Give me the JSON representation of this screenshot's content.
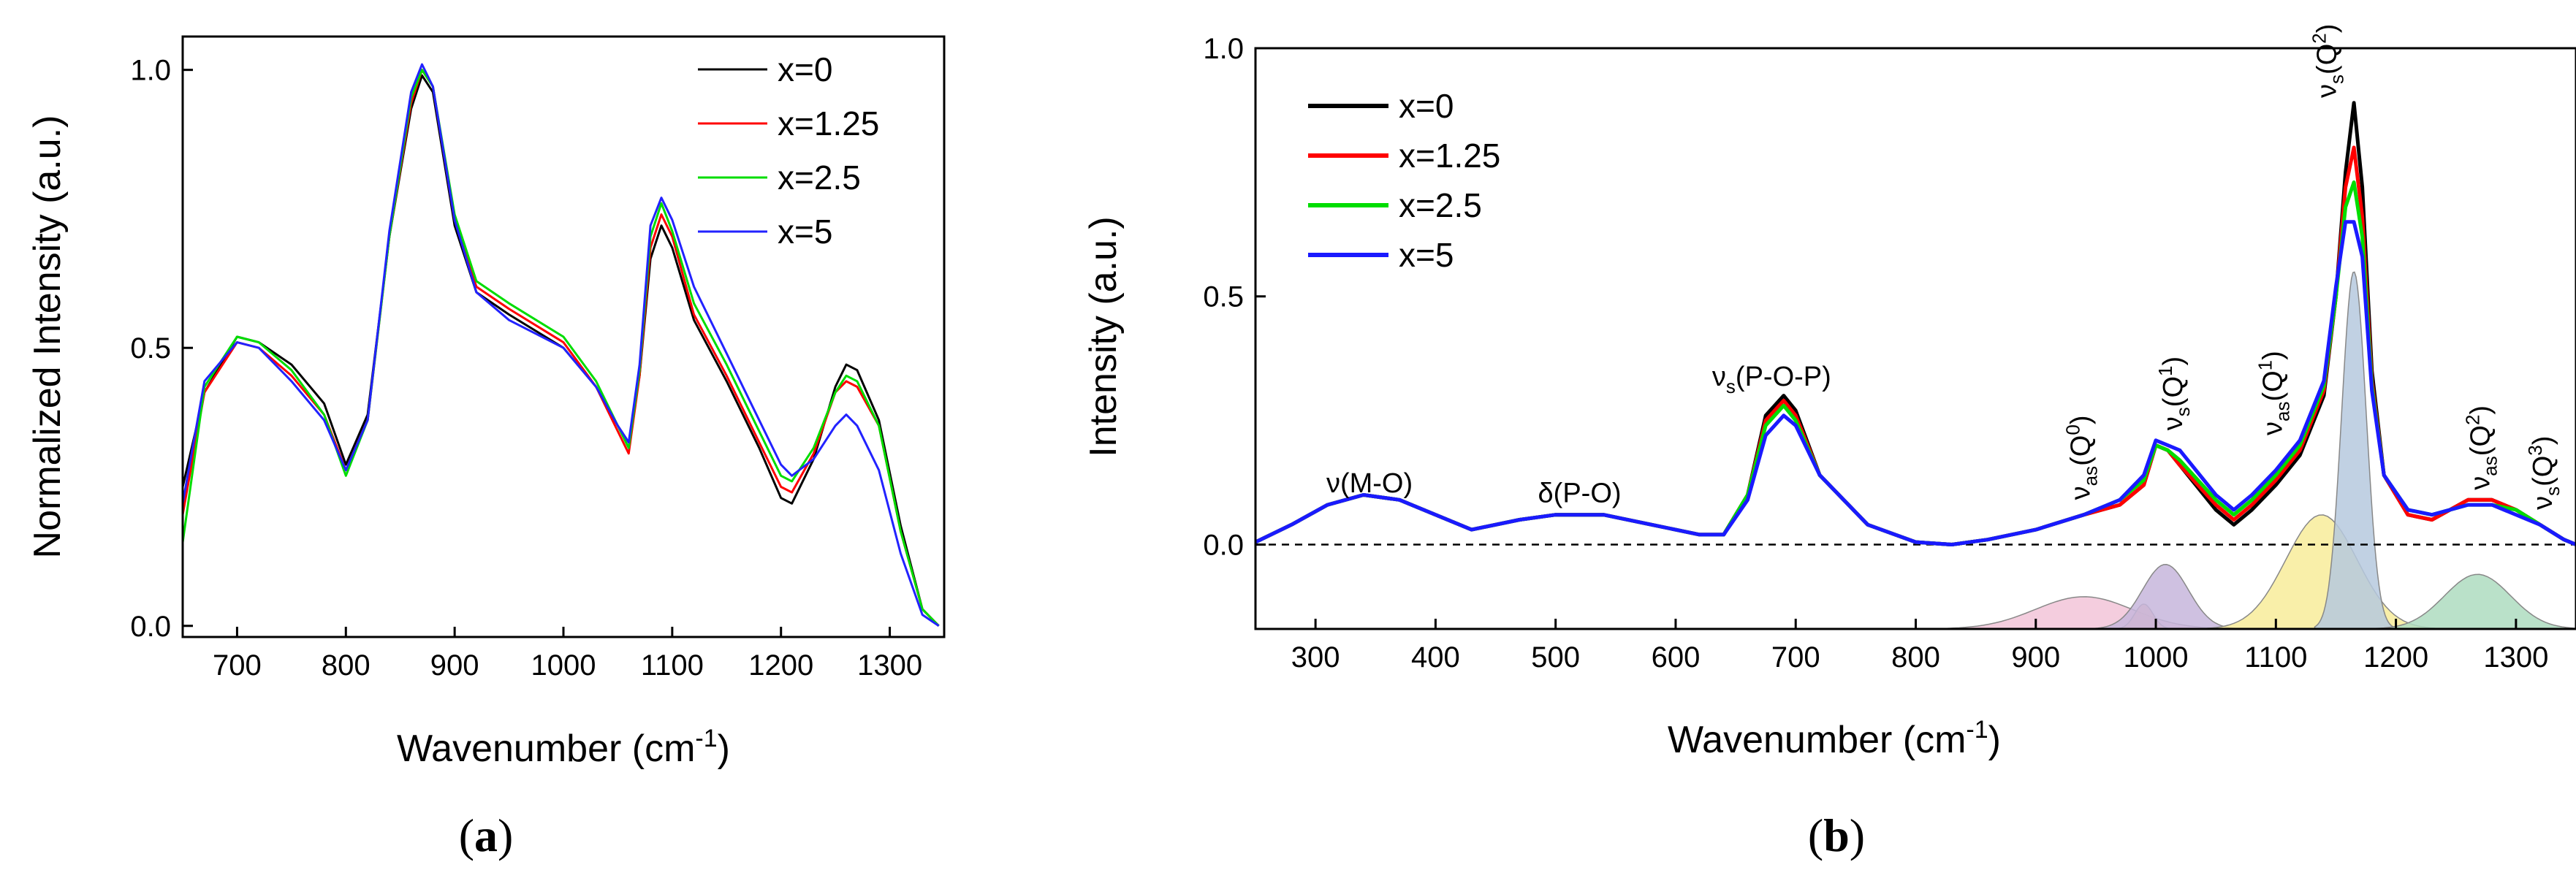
{
  "chart_data": [
    {
      "type": "line",
      "panel_label": "a",
      "xlabel": "Wavenumber (cm",
      "xlabel_sup": "-1",
      "xlabel_end": ")",
      "ylabel": "Normalized Intensity (a.u.)",
      "xlim": [
        650,
        1350
      ],
      "ylim": [
        -0.02,
        1.06
      ],
      "xticks": [
        700,
        800,
        900,
        1000,
        1100,
        1200,
        1300
      ],
      "yticks": [
        0.0,
        0.5,
        1.0
      ],
      "ytick_labels": [
        "0.0",
        "0.5",
        "1.0"
      ],
      "legend_position": "top-right",
      "series": [
        {
          "name": "x=0",
          "color": "#000000",
          "x": [
            650,
            670,
            700,
            720,
            750,
            780,
            800,
            820,
            840,
            860,
            870,
            880,
            900,
            920,
            950,
            1000,
            1030,
            1050,
            1060,
            1070,
            1080,
            1090,
            1100,
            1120,
            1150,
            1180,
            1200,
            1210,
            1230,
            1250,
            1260,
            1270,
            1290,
            1310,
            1330,
            1345
          ],
          "y": [
            0.25,
            0.42,
            0.52,
            0.51,
            0.47,
            0.4,
            0.29,
            0.38,
            0.7,
            0.93,
            0.99,
            0.96,
            0.72,
            0.6,
            0.56,
            0.5,
            0.43,
            0.36,
            0.33,
            0.45,
            0.66,
            0.72,
            0.68,
            0.55,
            0.44,
            0.32,
            0.23,
            0.22,
            0.3,
            0.43,
            0.47,
            0.46,
            0.37,
            0.18,
            0.03,
            0.0
          ]
        },
        {
          "name": "x=1.25",
          "color": "#ff0000",
          "x": [
            650,
            670,
            700,
            720,
            750,
            780,
            800,
            820,
            840,
            860,
            870,
            880,
            900,
            920,
            950,
            1000,
            1030,
            1050,
            1060,
            1070,
            1080,
            1090,
            1100,
            1120,
            1150,
            1180,
            1200,
            1210,
            1230,
            1250,
            1260,
            1270,
            1290,
            1310,
            1330,
            1345
          ],
          "y": [
            0.2,
            0.42,
            0.51,
            0.5,
            0.45,
            0.38,
            0.28,
            0.37,
            0.7,
            0.94,
            1.0,
            0.97,
            0.73,
            0.61,
            0.57,
            0.51,
            0.43,
            0.35,
            0.31,
            0.45,
            0.68,
            0.74,
            0.7,
            0.56,
            0.45,
            0.33,
            0.25,
            0.24,
            0.31,
            0.42,
            0.44,
            0.43,
            0.36,
            0.17,
            0.03,
            0.0
          ]
        },
        {
          "name": "x=2.5",
          "color": "#00dd00",
          "x": [
            650,
            670,
            700,
            720,
            750,
            780,
            800,
            820,
            840,
            860,
            870,
            880,
            900,
            920,
            950,
            1000,
            1030,
            1050,
            1060,
            1070,
            1080,
            1090,
            1100,
            1120,
            1150,
            1180,
            1200,
            1210,
            1230,
            1250,
            1260,
            1270,
            1290,
            1310,
            1330,
            1345
          ],
          "y": [
            0.15,
            0.43,
            0.52,
            0.51,
            0.46,
            0.38,
            0.27,
            0.37,
            0.7,
            0.95,
            1.0,
            0.97,
            0.74,
            0.62,
            0.58,
            0.52,
            0.44,
            0.36,
            0.32,
            0.46,
            0.7,
            0.76,
            0.71,
            0.58,
            0.47,
            0.35,
            0.27,
            0.26,
            0.32,
            0.42,
            0.45,
            0.44,
            0.36,
            0.17,
            0.03,
            0.0
          ]
        },
        {
          "name": "x=5",
          "color": "#2222ff",
          "x": [
            650,
            670,
            700,
            720,
            750,
            780,
            800,
            820,
            840,
            860,
            870,
            880,
            900,
            920,
            950,
            1000,
            1030,
            1050,
            1060,
            1070,
            1080,
            1090,
            1100,
            1120,
            1150,
            1180,
            1200,
            1210,
            1230,
            1250,
            1260,
            1270,
            1290,
            1310,
            1330,
            1345
          ],
          "y": [
            0.22,
            0.44,
            0.51,
            0.5,
            0.44,
            0.37,
            0.28,
            0.37,
            0.71,
            0.96,
            1.01,
            0.97,
            0.73,
            0.6,
            0.55,
            0.5,
            0.43,
            0.36,
            0.33,
            0.47,
            0.72,
            0.77,
            0.73,
            0.61,
            0.49,
            0.37,
            0.29,
            0.27,
            0.3,
            0.36,
            0.38,
            0.36,
            0.28,
            0.13,
            0.02,
            0.0
          ]
        }
      ]
    },
    {
      "type": "line",
      "panel_label": "b",
      "xlabel": "Wavenumber (cm",
      "xlabel_sup": "-1",
      "xlabel_end": ")",
      "ylabel": "Intensity (a.u.)",
      "xlim": [
        250,
        1350
      ],
      "ylim": [
        -0.17,
        1.0
      ],
      "xticks": [
        300,
        400,
        500,
        600,
        700,
        800,
        900,
        1000,
        1100,
        1200,
        1300
      ],
      "yticks": [
        0.0,
        0.5,
        1.0
      ],
      "ytick_labels": [
        "0.0",
        "0.5",
        "1.0"
      ],
      "baseline": 0.0,
      "legend_position": "top-left",
      "series": [
        {
          "name": "x=0",
          "color": "#000000",
          "x": [
            250,
            280,
            310,
            340,
            370,
            400,
            430,
            470,
            500,
            540,
            580,
            620,
            640,
            660,
            675,
            690,
            700,
            720,
            760,
            800,
            830,
            860,
            900,
            940,
            970,
            990,
            1000,
            1010,
            1020,
            1050,
            1065,
            1080,
            1100,
            1120,
            1140,
            1150,
            1158,
            1165,
            1172,
            1180,
            1190,
            1210,
            1230,
            1260,
            1280,
            1300,
            1320,
            1340,
            1350
          ],
          "y": [
            0.005,
            0.04,
            0.08,
            0.1,
            0.09,
            0.06,
            0.03,
            0.05,
            0.06,
            0.06,
            0.04,
            0.02,
            0.02,
            0.1,
            0.26,
            0.3,
            0.27,
            0.14,
            0.04,
            0.005,
            0.0,
            0.01,
            0.03,
            0.06,
            0.08,
            0.12,
            0.2,
            0.19,
            0.16,
            0.07,
            0.04,
            0.07,
            0.12,
            0.18,
            0.3,
            0.5,
            0.75,
            0.89,
            0.72,
            0.35,
            0.14,
            0.06,
            0.05,
            0.09,
            0.09,
            0.07,
            0.04,
            0.01,
            0.0
          ]
        },
        {
          "name": "x=1.25",
          "color": "#ff0000",
          "x": [
            250,
            280,
            310,
            340,
            370,
            400,
            430,
            470,
            500,
            540,
            580,
            620,
            640,
            660,
            675,
            690,
            700,
            720,
            760,
            800,
            830,
            860,
            900,
            940,
            970,
            990,
            1000,
            1010,
            1020,
            1050,
            1065,
            1080,
            1100,
            1120,
            1140,
            1150,
            1158,
            1165,
            1172,
            1180,
            1190,
            1210,
            1230,
            1260,
            1280,
            1300,
            1320,
            1340,
            1350
          ],
          "y": [
            0.005,
            0.04,
            0.08,
            0.1,
            0.09,
            0.06,
            0.03,
            0.05,
            0.06,
            0.06,
            0.04,
            0.02,
            0.02,
            0.1,
            0.25,
            0.29,
            0.26,
            0.14,
            0.04,
            0.005,
            0.0,
            0.01,
            0.03,
            0.06,
            0.08,
            0.12,
            0.2,
            0.19,
            0.16,
            0.08,
            0.05,
            0.08,
            0.13,
            0.19,
            0.31,
            0.5,
            0.72,
            0.8,
            0.66,
            0.33,
            0.14,
            0.06,
            0.05,
            0.09,
            0.09,
            0.07,
            0.04,
            0.01,
            0.0
          ]
        },
        {
          "name": "x=2.5",
          "color": "#00dd00",
          "x": [
            250,
            280,
            310,
            340,
            370,
            400,
            430,
            470,
            500,
            540,
            580,
            620,
            640,
            660,
            675,
            690,
            700,
            720,
            760,
            800,
            830,
            860,
            900,
            940,
            970,
            990,
            1000,
            1010,
            1020,
            1050,
            1065,
            1080,
            1100,
            1120,
            1140,
            1150,
            1158,
            1165,
            1172,
            1180,
            1190,
            1210,
            1230,
            1260,
            1280,
            1300,
            1320,
            1340,
            1350
          ],
          "y": [
            0.005,
            0.04,
            0.08,
            0.1,
            0.09,
            0.06,
            0.03,
            0.05,
            0.06,
            0.06,
            0.04,
            0.02,
            0.02,
            0.1,
            0.24,
            0.28,
            0.25,
            0.14,
            0.04,
            0.005,
            0.0,
            0.01,
            0.03,
            0.06,
            0.09,
            0.13,
            0.2,
            0.19,
            0.17,
            0.09,
            0.06,
            0.09,
            0.14,
            0.2,
            0.32,
            0.5,
            0.68,
            0.73,
            0.62,
            0.32,
            0.14,
            0.07,
            0.06,
            0.08,
            0.08,
            0.07,
            0.04,
            0.01,
            0.0
          ]
        },
        {
          "name": "x=5",
          "color": "#1a1aff",
          "x": [
            250,
            280,
            310,
            340,
            370,
            400,
            430,
            470,
            500,
            540,
            580,
            620,
            640,
            660,
            675,
            690,
            700,
            720,
            760,
            800,
            830,
            860,
            900,
            940,
            970,
            990,
            1000,
            1010,
            1020,
            1050,
            1065,
            1080,
            1100,
            1120,
            1140,
            1150,
            1158,
            1165,
            1172,
            1180,
            1190,
            1210,
            1230,
            1260,
            1280,
            1300,
            1320,
            1340,
            1350
          ],
          "y": [
            0.005,
            0.04,
            0.08,
            0.1,
            0.09,
            0.06,
            0.03,
            0.05,
            0.06,
            0.06,
            0.04,
            0.02,
            0.02,
            0.09,
            0.22,
            0.26,
            0.24,
            0.14,
            0.04,
            0.005,
            0.0,
            0.01,
            0.03,
            0.06,
            0.09,
            0.14,
            0.21,
            0.2,
            0.19,
            0.1,
            0.07,
            0.1,
            0.15,
            0.21,
            0.33,
            0.52,
            0.65,
            0.65,
            0.58,
            0.31,
            0.14,
            0.07,
            0.06,
            0.08,
            0.08,
            0.06,
            0.04,
            0.01,
            0.0
          ]
        }
      ],
      "deconvolution_bands": [
        {
          "center": 940,
          "fwhm": 95,
          "height": 0.065,
          "color": "#f2c4d8"
        },
        {
          "center": 990,
          "fwhm": 18,
          "height": 0.05,
          "color": "#f4b8a8"
        },
        {
          "center": 1008,
          "fwhm": 45,
          "height": 0.13,
          "color": "#c7b6dc"
        },
        {
          "center": 1138,
          "fwhm": 70,
          "height": 0.23,
          "color": "#f8ec9a"
        },
        {
          "center": 1165,
          "fwhm": 24,
          "height": 0.72,
          "color": "#b6c9de"
        },
        {
          "center": 1268,
          "fwhm": 65,
          "height": 0.11,
          "color": "#aedcbf"
        }
      ],
      "annotations": [
        {
          "text": "ν(M-O)",
          "at": [
            345,
            0.105
          ]
        },
        {
          "text": "δ(P-O)",
          "at": [
            520,
            0.085
          ]
        },
        {
          "text": "ν",
          "sub": "s",
          "rest": "(P-O-P)",
          "at": [
            680,
            0.32
          ]
        },
        {
          "text": "ν",
          "sub": "as",
          "rest": "(Q",
          "sup": "0",
          "end": ")",
          "at": [
            945,
            0.09
          ],
          "rotated": true
        },
        {
          "text": "ν",
          "sub": "s",
          "rest": "(Q",
          "sup": "1",
          "end": ")",
          "at": [
            1022,
            0.23
          ],
          "rotated": true
        },
        {
          "text": "ν",
          "sub": "as",
          "rest": "(Q",
          "sup": "1",
          "end": ")",
          "at": [
            1105,
            0.22
          ],
          "rotated": true
        },
        {
          "text": "ν",
          "sub": "s",
          "rest": "(Q",
          "sup": "2",
          "end": ")",
          "at": [
            1150,
            0.9
          ],
          "rotated": true
        },
        {
          "text": "ν",
          "sub": "as",
          "rest": "(Q",
          "sup": "2",
          "end": ")",
          "at": [
            1278,
            0.11
          ],
          "rotated": true
        },
        {
          "text": "ν",
          "sub": "s",
          "rest": "(Q",
          "sup": "3",
          "end": ")",
          "at": [
            1330,
            0.07
          ],
          "rotated": true
        }
      ]
    }
  ]
}
